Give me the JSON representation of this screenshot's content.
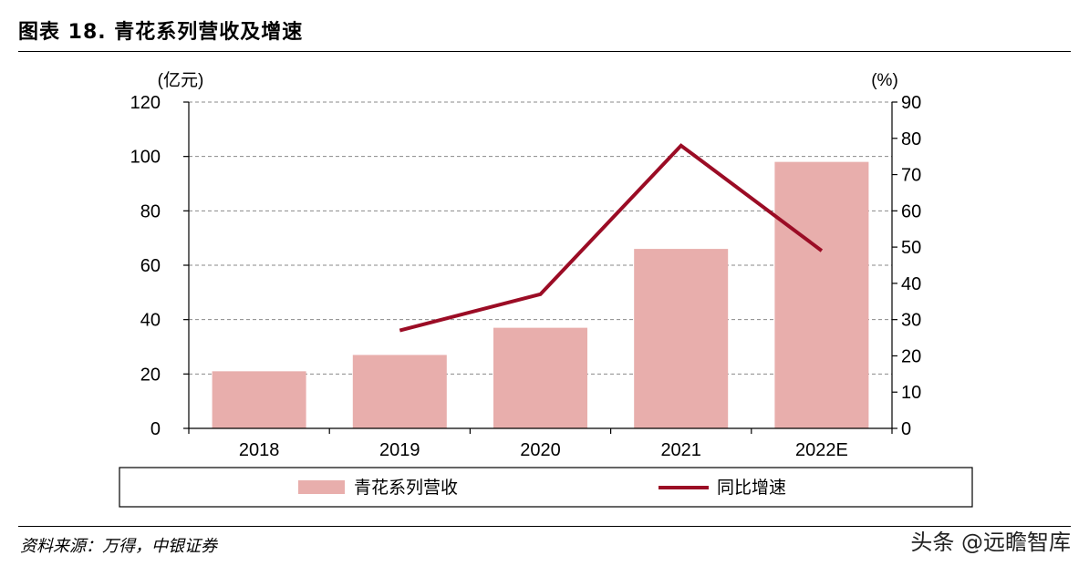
{
  "header": {
    "title": "图表 18. 青花系列营收及增速"
  },
  "footer": {
    "source": "资料来源：万得，中银证券",
    "watermark": "头条 @远瞻智库"
  },
  "chart_data": {
    "type": "bar",
    "categories": [
      "2018",
      "2019",
      "2020",
      "2021",
      "2022E"
    ],
    "series": [
      {
        "name": "青花系列营收",
        "type": "bar",
        "axis": "left",
        "color": "#e8aeac",
        "values": [
          21,
          27,
          37,
          66,
          98
        ]
      },
      {
        "name": "同比增速",
        "type": "line",
        "axis": "right",
        "color": "#9b0c25",
        "values": [
          null,
          27,
          37,
          78,
          49
        ]
      }
    ],
    "y_left": {
      "unit_label": "(亿元)",
      "range": [
        0,
        120
      ],
      "ticks": [
        "0",
        "20",
        "40",
        "60",
        "80",
        "100",
        "120"
      ]
    },
    "y_right": {
      "unit_label": "(%)",
      "range": [
        0,
        90
      ],
      "ticks": [
        "0",
        "10",
        "20",
        "30",
        "40",
        "50",
        "60",
        "70",
        "80",
        "90"
      ]
    },
    "grid": true,
    "legend_position": "bottom"
  }
}
